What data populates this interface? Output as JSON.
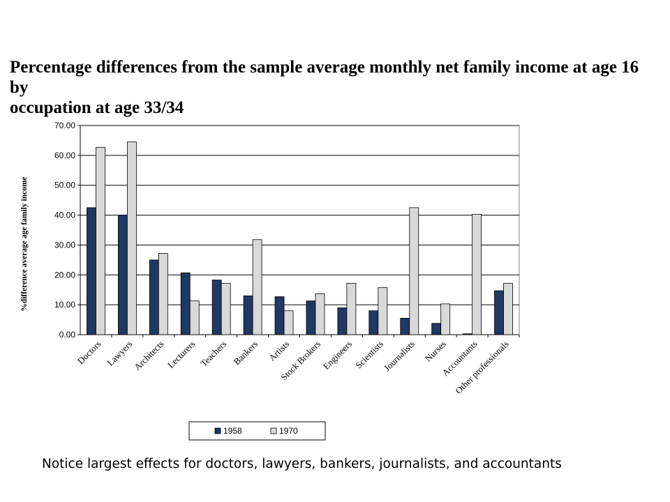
{
  "title_lines": [
    "Percentage differences from the sample average monthly net family income at age 16 by",
    "occupation at age 33/34"
  ],
  "note": "Notice largest effects for doctors, lawyers, bankers, journalists, and accountants",
  "colors": {
    "series_1958": "#1f3864",
    "series_1970": "#d9d9d9"
  },
  "chart_data": {
    "type": "bar",
    "title": "Percentage differences from the sample average monthly net family income at age 16 by occupation at age 33/34",
    "ylabel": "%difference average age family income",
    "xlabel": "",
    "ylim": [
      0,
      70
    ],
    "yticks": [
      "0.00",
      "10.00",
      "20.00",
      "30.00",
      "40.00",
      "50.00",
      "60.00",
      "70.00"
    ],
    "grid": true,
    "legend_position": "bottom",
    "categories": [
      "Doctors",
      "Lawyers",
      "Architects",
      "Lecturers",
      "Teachers",
      "Bankers",
      "Artists",
      "Stock Brokers",
      "Engineers",
      "Scientists",
      "Journalists",
      "Nurses",
      "Accountants",
      "Other professionals"
    ],
    "series": [
      {
        "name": "1958",
        "values": [
          42.5,
          40.0,
          25.0,
          20.7,
          18.3,
          13.0,
          12.7,
          11.3,
          9.0,
          8.0,
          5.5,
          3.8,
          0.3,
          14.7
        ]
      },
      {
        "name": "1970",
        "values": [
          62.7,
          64.5,
          27.2,
          11.3,
          17.2,
          31.8,
          8.0,
          13.7,
          17.2,
          15.8,
          42.5,
          10.3,
          40.3,
          17.2
        ]
      }
    ]
  }
}
